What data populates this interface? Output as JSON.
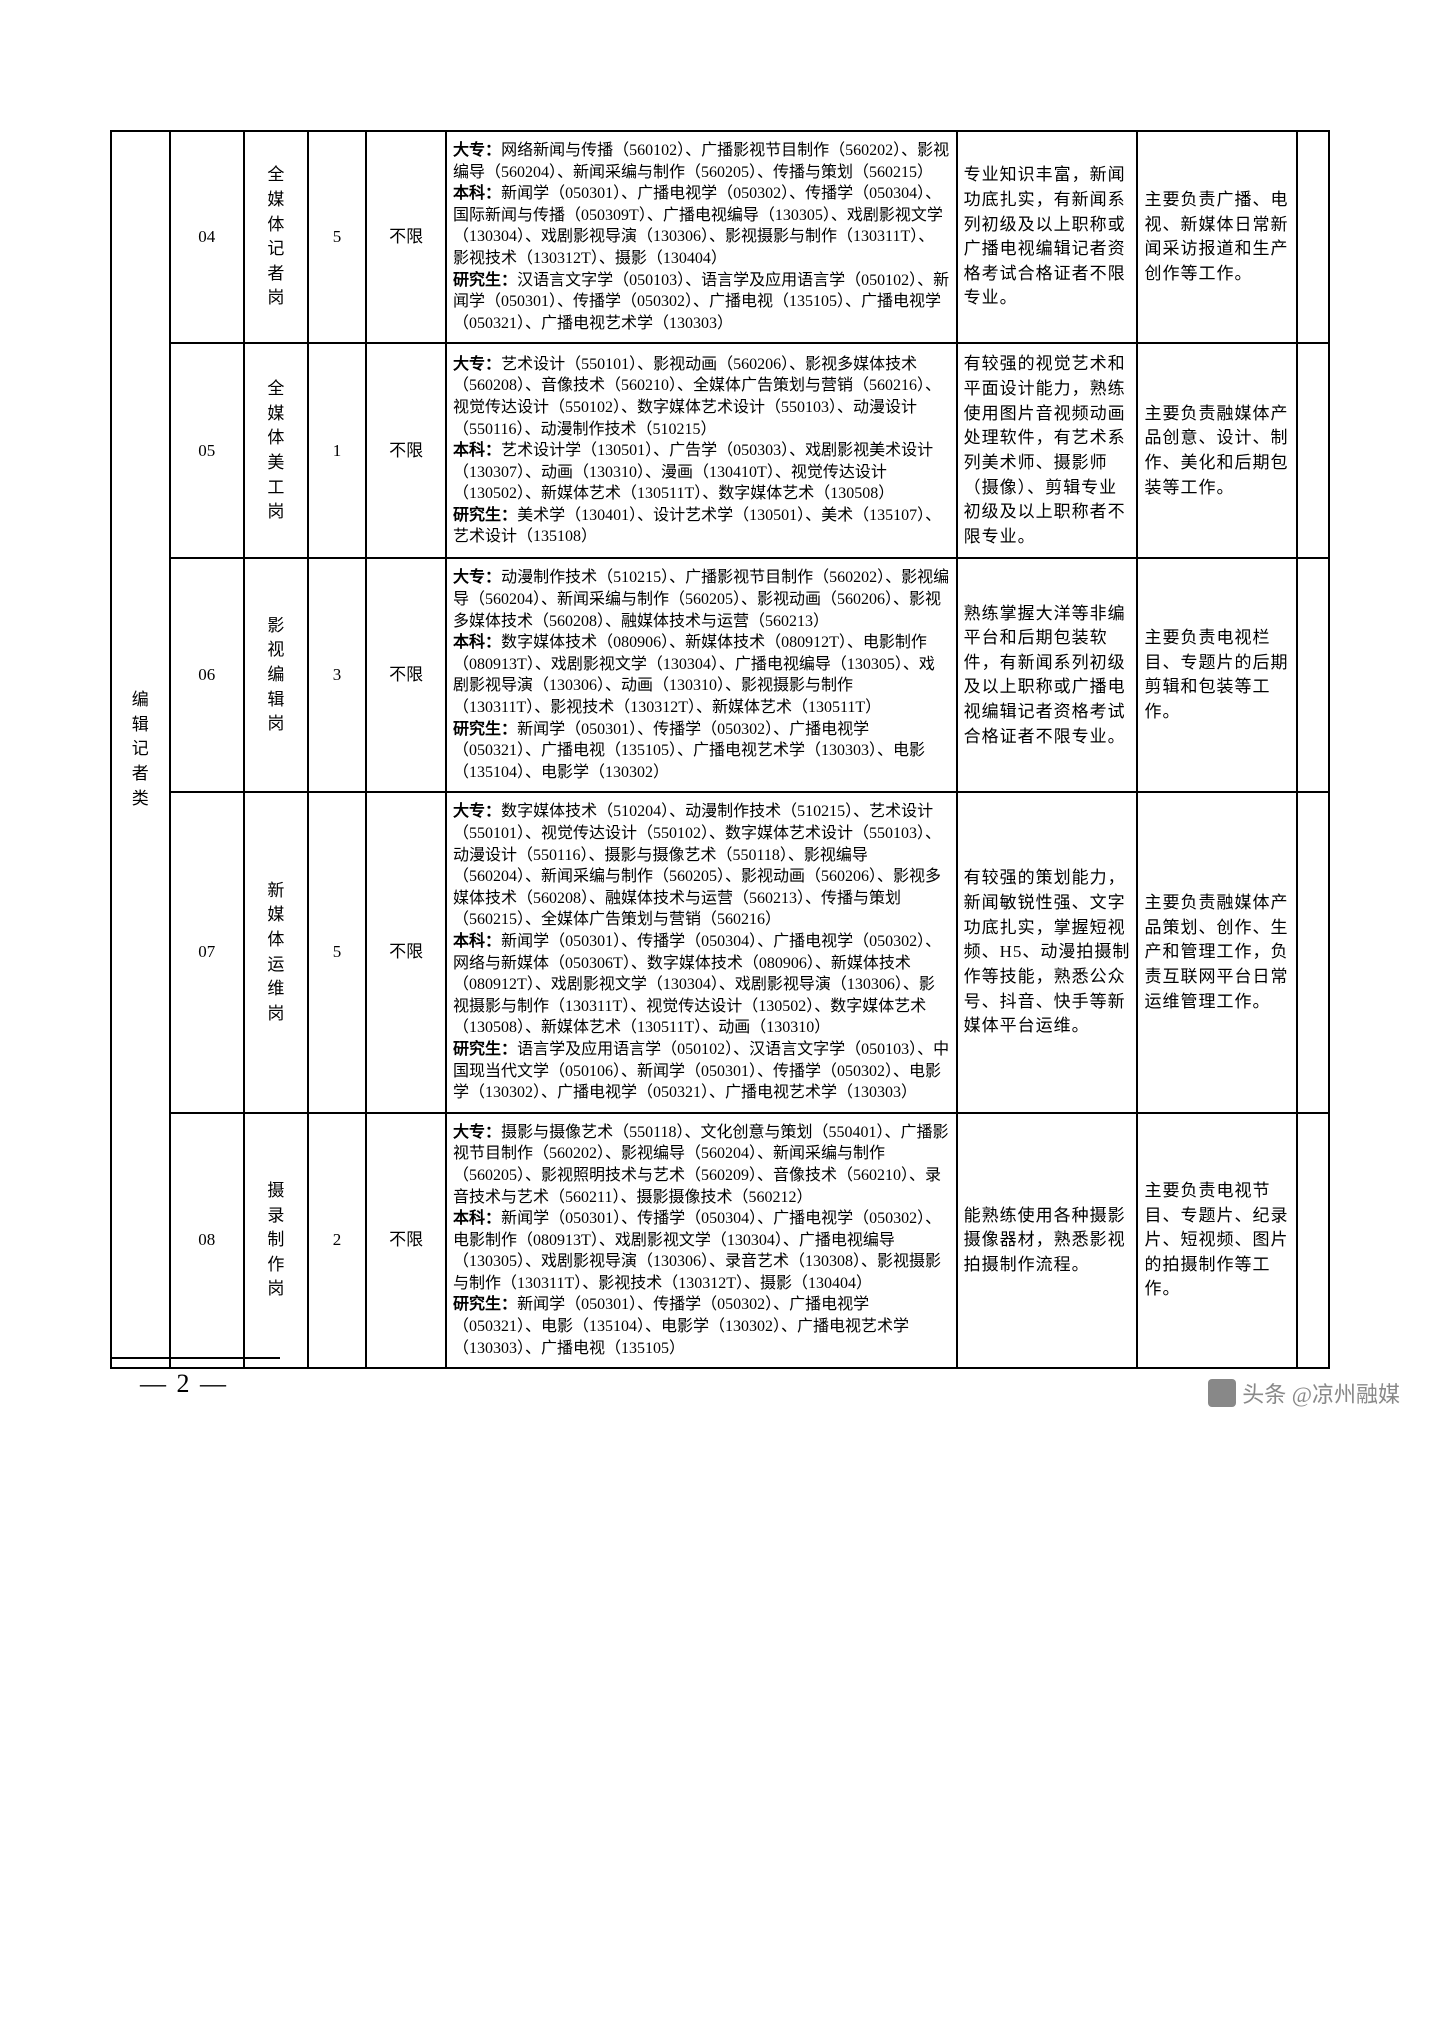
{
  "category": "编辑记者类",
  "page_number": "— 2 —",
  "watermark": "头条 @凉州融媒",
  "rows": [
    {
      "code": "04",
      "position": "全媒体记者岗",
      "count": "5",
      "limit": "不限",
      "req": "<b>大专：</b>网络新闻与传播（560102）、广播影视节目制作（560202）、影视编导（560204）、新闻采编与制作（560205）、传播与策划（560215）<br><b>本科：</b>新闻学（050301）、广播电视学（050302）、传播学（050304）、国际新闻与传播（050309T）、广播电视编导（130305）、戏剧影视文学（130304）、戏剧影视导演（130306）、影视摄影与制作（130311T）、影视技术（130312T）、摄影（130404）<br><b>研究生：</b>汉语言文字学（050103）、语言学及应用语言学（050102）、新闻学（050301）、传播学（050302）、广播电视（135105）、广播电视学（050321）、广播电视艺术学（130303）",
      "cond": "专业知识丰富，新闻功底扎实，有新闻系列初级及以上职称或广播电视编辑记者资格考试合格证者不限专业。",
      "duty": "主要负责广播、电视、新媒体日常新闻采访报道和生产创作等工作。"
    },
    {
      "code": "05",
      "position": "全媒体美工岗",
      "count": "1",
      "limit": "不限",
      "req": "<b>大专：</b>艺术设计（550101）、影视动画（560206）、影视多媒体技术（560208）、音像技术（560210）、全媒体广告策划与营销（560216）、视觉传达设计（550102）、数字媒体艺术设计（550103）、动漫设计（550116）、动漫制作技术（510215）<br><b>本科：</b>艺术设计学（130501）、广告学（050303）、戏剧影视美术设计（130307）、动画（130310）、漫画（130410T）、视觉传达设计（130502）、新媒体艺术（130511T）、数字媒体艺术（130508）<br><b>研究生：</b>美术学（130401）、设计艺术学（130501）、美术（135107）、艺术设计（135108）",
      "cond": "有较强的视觉艺术和平面设计能力，熟练使用图片音视频动画处理软件，有艺术系列美术师、摄影师（摄像）、剪辑专业初级及以上职称者不限专业。",
      "duty": "主要负责融媒体产品创意、设计、制作、美化和后期包装等工作。"
    },
    {
      "code": "06",
      "position": "影视编辑岗",
      "count": "3",
      "limit": "不限",
      "req": "<b>大专：</b>动漫制作技术（510215）、广播影视节目制作（560202）、影视编导（560204）、新闻采编与制作（560205）、影视动画（560206）、影视多媒体技术（560208）、融媒体技术与运营（560213）<br><b>本科：</b>数字媒体技术（080906）、新媒体技术（080912T）、电影制作（080913T）、戏剧影视文学（130304）、广播电视编导（130305）、戏剧影视导演（130306）、动画（130310）、影视摄影与制作（130311T）、影视技术（130312T）、新媒体艺术（130511T）<br><b>研究生：</b>新闻学（050301）、传播学（050302）、广播电视学（050321）、广播电视（135105）、广播电视艺术学（130303）、电影（135104）、电影学（130302）",
      "cond": "熟练掌握大洋等非编平台和后期包装软件，有新闻系列初级及以上职称或广播电视编辑记者资格考试合格证者不限专业。",
      "duty": "主要负责电视栏目、专题片的后期剪辑和包装等工作。"
    },
    {
      "code": "07",
      "position": "新媒体运维岗",
      "count": "5",
      "limit": "不限",
      "req": "<b>大专：</b>数字媒体技术（510204）、动漫制作技术（510215）、艺术设计（550101）、视觉传达设计（550102）、数字媒体艺术设计（550103）、动漫设计（550116）、摄影与摄像艺术（550118）、影视编导（560204）、新闻采编与制作（560205）、影视动画（560206）、影视多媒体技术（560208）、融媒体技术与运营（560213）、传播与策划（560215）、全媒体广告策划与营销（560216）<br><b>本科：</b>新闻学（050301）、传播学（050304）、广播电视学（050302）、网络与新媒体（050306T）、数字媒体技术（080906）、新媒体技术（080912T）、戏剧影视文学（130304）、戏剧影视导演（130306）、影视摄影与制作（130311T）、视觉传达设计（130502）、数字媒体艺术（130508）、新媒体艺术（130511T）、动画（130310）<br><b>研究生：</b>语言学及应用语言学（050102）、汉语言文字学（050103）、中国现当代文学（050106）、新闻学（050301）、传播学（050302）、电影学（130302）、广播电视学（050321）、广播电视艺术学（130303）",
      "cond": "有较强的策划能力，新闻敏锐性强、文字功底扎实，掌握短视频、H5、动漫拍摄制作等技能，熟悉公众号、抖音、快手等新媒体平台运维。",
      "duty": "主要负责融媒体产品策划、创作、生产和管理工作，负责互联网平台日常运维管理工作。"
    },
    {
      "code": "08",
      "position": "摄录制作岗",
      "count": "2",
      "limit": "不限",
      "req": "<b>大专：</b>摄影与摄像艺术（550118）、文化创意与策划（550401）、广播影视节目制作（560202）、影视编导（560204）、新闻采编与制作（560205）、影视照明技术与艺术（560209）、音像技术（560210）、录音技术与艺术（560211）、摄影摄像技术（560212）<br><b>本科：</b>新闻学（050301）、传播学（050304）、广播电视学（050302）、电影制作（080913T）、戏剧影视文学（130304）、广播电视编导（130305）、戏剧影视导演（130306）、录音艺术（130308）、影视摄影与制作（130311T）、影视技术（130312T）、摄影（130404）<br><b>研究生：</b>新闻学（050301）、传播学（050302）、广播电视学（050321）、电影（135104）、电影学（130302）、广播电视艺术学（130303）、广播电视（135105）",
      "cond": "能熟练使用各种摄影摄像器材，熟悉影视拍摄制作流程。",
      "duty": "主要负责电视节目、专题片、纪录片、短视频、图片的拍摄制作等工作。"
    }
  ]
}
